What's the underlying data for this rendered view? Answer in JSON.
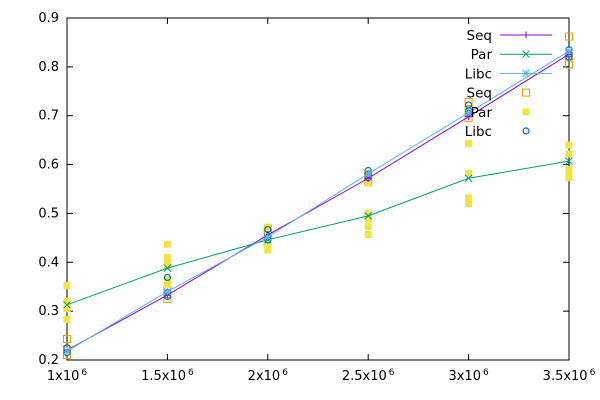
{
  "chart_data": {
    "type": "line",
    "title": "",
    "xlabel": "",
    "ylabel": "",
    "xlim": [
      1000000,
      3500000
    ],
    "ylim": [
      0.2,
      0.9
    ],
    "grid": false,
    "legend_position": "top-right",
    "x_tick_labels": [
      {
        "base": "1x10",
        "exp": "6"
      },
      {
        "base": "1.5x10",
        "exp": "6"
      },
      {
        "base": "2x10",
        "exp": "6"
      },
      {
        "base": "2.5x10",
        "exp": "6"
      },
      {
        "base": "3x10",
        "exp": "6"
      },
      {
        "base": "3.5x10",
        "exp": "6"
      }
    ],
    "x_ticks": [
      1000000,
      1500000,
      2000000,
      2500000,
      3000000,
      3500000
    ],
    "y_ticks": [
      0.2,
      0.3,
      0.4,
      0.5,
      0.6,
      0.7,
      0.8,
      0.9
    ],
    "y_tick_labels": [
      "0.2",
      "0.3",
      "0.4",
      "0.5",
      "0.6",
      "0.7",
      "0.8",
      "0.9"
    ],
    "x": [
      1000000,
      1500000,
      2000000,
      2500000,
      3000000,
      3500000
    ],
    "line_series": [
      {
        "name": "Seq",
        "color": "#9400d3",
        "marker": "plus",
        "values": [
          0.22,
          0.333,
          0.456,
          0.572,
          0.698,
          0.826
        ]
      },
      {
        "name": "Par",
        "color": "#009e73",
        "marker": "cross",
        "values": [
          0.313,
          0.388,
          0.446,
          0.495,
          0.572,
          0.607
        ]
      },
      {
        "name": "Libc",
        "color": "#56b4e9",
        "marker": "asterisk",
        "values": [
          0.218,
          0.34,
          0.452,
          0.581,
          0.706,
          0.832
        ]
      }
    ],
    "scatter_series": [
      {
        "name": "Seq",
        "color": "#e69f00",
        "marker": "open-square",
        "points": [
          [
            1000000,
            0.243
          ],
          [
            1000000,
            0.222
          ],
          [
            1000000,
            0.21
          ],
          [
            1500000,
            0.325
          ],
          [
            1500000,
            0.335
          ],
          [
            1500000,
            0.343
          ],
          [
            2000000,
            0.452
          ],
          [
            2000000,
            0.462
          ],
          [
            2000000,
            0.47
          ],
          [
            2500000,
            0.565
          ],
          [
            2500000,
            0.575
          ],
          [
            2500000,
            0.58
          ],
          [
            3000000,
            0.695
          ],
          [
            3000000,
            0.712
          ],
          [
            3000000,
            0.728
          ],
          [
            3500000,
            0.805
          ],
          [
            3500000,
            0.822
          ],
          [
            3500000,
            0.862
          ]
        ]
      },
      {
        "name": "Par",
        "color": "#f0e442",
        "marker": "filled-square",
        "points": [
          [
            1000000,
            0.352
          ],
          [
            1000000,
            0.32
          ],
          [
            1000000,
            0.305
          ],
          [
            1000000,
            0.283
          ],
          [
            1500000,
            0.437
          ],
          [
            1500000,
            0.41
          ],
          [
            1500000,
            0.4
          ],
          [
            1500000,
            0.392
          ],
          [
            1500000,
            0.365
          ],
          [
            1500000,
            0.355
          ],
          [
            2000000,
            0.472
          ],
          [
            2000000,
            0.452
          ],
          [
            2000000,
            0.435
          ],
          [
            2000000,
            0.425
          ],
          [
            2500000,
            0.562
          ],
          [
            2500000,
            0.5
          ],
          [
            2500000,
            0.488
          ],
          [
            2500000,
            0.473
          ],
          [
            2500000,
            0.457
          ],
          [
            3000000,
            0.643
          ],
          [
            3000000,
            0.582
          ],
          [
            3000000,
            0.532
          ],
          [
            3000000,
            0.52
          ],
          [
            3500000,
            0.64
          ],
          [
            3500000,
            0.622
          ],
          [
            3500000,
            0.59
          ],
          [
            3500000,
            0.578
          ],
          [
            3500000,
            0.573
          ]
        ]
      },
      {
        "name": "Libc",
        "color": "#0072b2",
        "marker": "open-circle",
        "points": [
          [
            1000000,
            0.225
          ],
          [
            1000000,
            0.215
          ],
          [
            1500000,
            0.369
          ],
          [
            1500000,
            0.338
          ],
          [
            1500000,
            0.33
          ],
          [
            2000000,
            0.467
          ],
          [
            2000000,
            0.452
          ],
          [
            2000000,
            0.446
          ],
          [
            2500000,
            0.588
          ],
          [
            2500000,
            0.58
          ],
          [
            2500000,
            0.573
          ],
          [
            3000000,
            0.722
          ],
          [
            3000000,
            0.71
          ],
          [
            3000000,
            0.705
          ],
          [
            3500000,
            0.835
          ],
          [
            3500000,
            0.826
          ],
          [
            3500000,
            0.82
          ]
        ]
      }
    ],
    "legend": [
      "Seq",
      "Par",
      "Libc",
      "Seq",
      "Par",
      "Libc"
    ]
  }
}
